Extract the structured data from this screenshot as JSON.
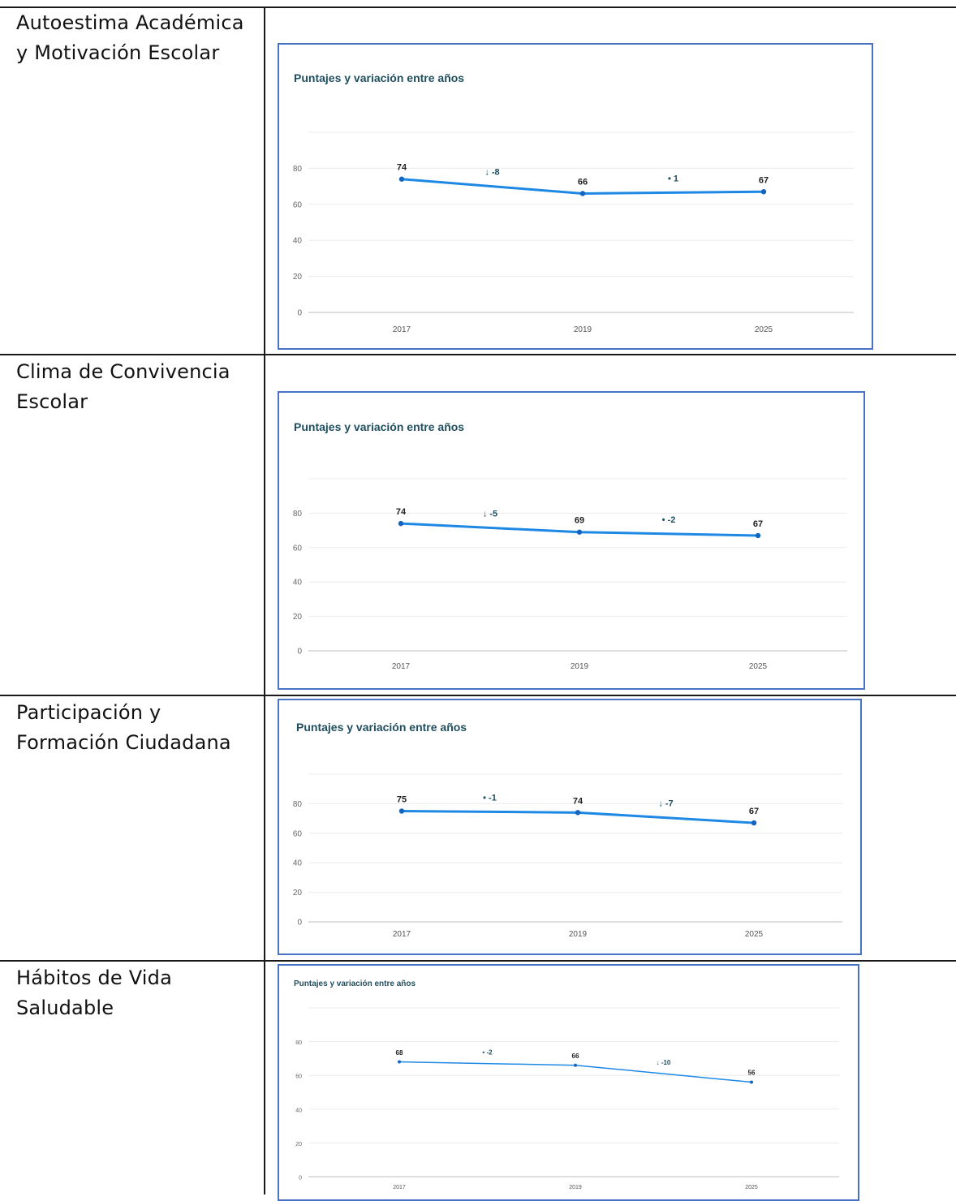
{
  "rows": [
    {
      "label": "Autoestima Académica y Motivación Escolar",
      "chart_data": {
        "type": "line",
        "title": "Puntajes y variación entre años",
        "categories": [
          "2017",
          "2019",
          "2025"
        ],
        "values": [
          74,
          66,
          67
        ],
        "value_labels": [
          "74",
          "66",
          "67"
        ],
        "variations": [
          {
            "symbol": "↓",
            "text": "-8"
          },
          {
            "symbol": "•",
            "text": "1"
          }
        ],
        "ylim": [
          0,
          100
        ],
        "yticks": [
          "80",
          "60",
          "40",
          "20",
          "0"
        ],
        "grid": true,
        "line_color": "#1e88e5"
      }
    },
    {
      "label": "Clima de Convivencia Escolar",
      "chart_data": {
        "type": "line",
        "title": "Puntajes y variación entre años",
        "categories": [
          "2017",
          "2019",
          "2025"
        ],
        "values": [
          74,
          69,
          67
        ],
        "value_labels": [
          "74",
          "69",
          "67"
        ],
        "variations": [
          {
            "symbol": "↓",
            "text": "-5"
          },
          {
            "symbol": "•",
            "text": "-2"
          }
        ],
        "ylim": [
          0,
          100
        ],
        "yticks": [
          "80",
          "60",
          "40",
          "20",
          "0"
        ],
        "grid": true,
        "line_color": "#1e88e5"
      }
    },
    {
      "label": "Participación y Formación Ciudadana",
      "chart_data": {
        "type": "line",
        "title": "Puntajes y variación entre años",
        "categories": [
          "2017",
          "2019",
          "2025"
        ],
        "values": [
          75,
          74,
          67
        ],
        "value_labels": [
          "75",
          "74",
          "67"
        ],
        "variations": [
          {
            "symbol": "•",
            "text": "-1"
          },
          {
            "symbol": "↓",
            "text": "-7"
          }
        ],
        "ylim": [
          0,
          100
        ],
        "yticks": [
          "80",
          "60",
          "40",
          "20",
          "0"
        ],
        "grid": true,
        "line_color": "#1e88e5"
      }
    },
    {
      "label": "Hábitos de Vida Saludable",
      "chart_data": {
        "type": "line",
        "title": "Puntajes y variación entre años",
        "categories": [
          "2017",
          "2019",
          "2025"
        ],
        "values": [
          68,
          66,
          56
        ],
        "value_labels": [
          "68",
          "66",
          "56"
        ],
        "variations": [
          {
            "symbol": "•",
            "text": "-2"
          },
          {
            "symbol": "↓",
            "text": "-10"
          }
        ],
        "ylim": [
          0,
          100
        ],
        "yticks": [
          "80",
          "60",
          "40",
          "20",
          "0"
        ],
        "grid": true,
        "line_color": "#1e88e5"
      }
    }
  ]
}
